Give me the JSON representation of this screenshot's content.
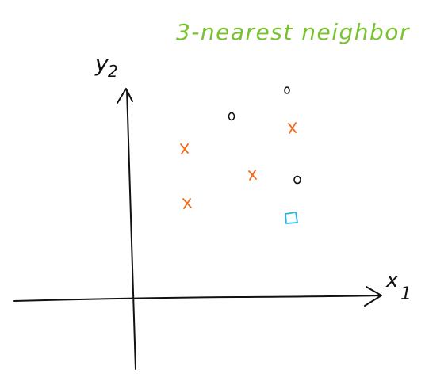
{
  "title": "3-nearest neighbor",
  "axes": {
    "x_label": "x",
    "x_sub": "1",
    "y_label": "y",
    "y_sub": "2"
  },
  "colors": {
    "title": "#79c22f",
    "cross": "#f26a1b",
    "circle": "#111111",
    "query": "#29b5e8",
    "axis": "#111111"
  },
  "points": {
    "crosses": 4,
    "circles": 3,
    "query": 1
  }
}
